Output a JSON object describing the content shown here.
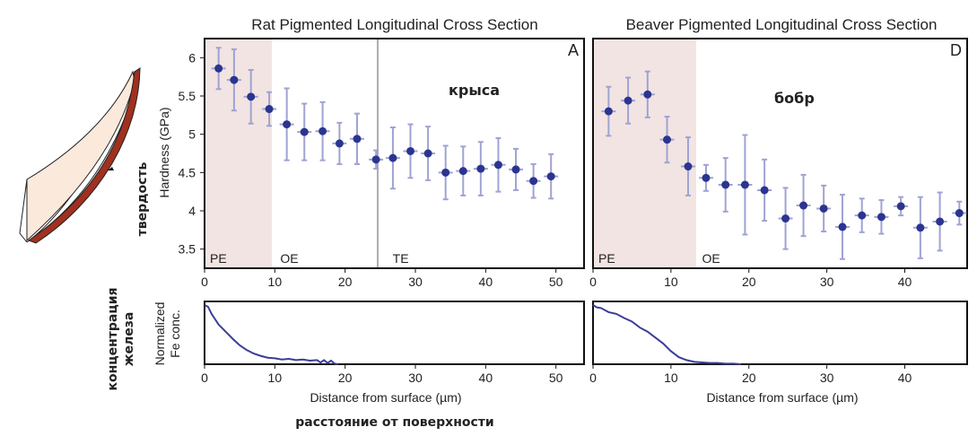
{
  "colors": {
    "points": "#2b3590",
    "errorbars": "#9fa3d3",
    "pe_zone": "#f2e4e2",
    "fe_line": "#3a3d96",
    "enamel_dark": "#a0301f"
  },
  "labels": {
    "y_ru_hardness": "твердость",
    "y_ru_iron_1": "концентрация",
    "y_ru_iron_2": "железа",
    "x_ru": "расстояние от поверхности"
  },
  "illustration": {
    "icon": "incisor-tooth-diagram-icon"
  },
  "chart_data": [
    {
      "type": "scatter",
      "title": "Rat Pigmented Longitudinal Cross Section",
      "panel_letter": "A",
      "annotation": "крыса",
      "ylabel": "Hardness (GPa)",
      "xlim": [
        0,
        54
      ],
      "ylim": [
        3.25,
        6.25
      ],
      "yticks": [
        "3.5",
        "4",
        "4.5",
        "5",
        "5.5",
        "6"
      ],
      "xticks": [
        "0",
        "10",
        "20",
        "30",
        "40",
        "50"
      ],
      "zones": [
        {
          "label": "PE",
          "x": 0
        },
        {
          "label": "OE",
          "x": 10
        },
        {
          "label": "TE",
          "x": 26
        }
      ],
      "pe_range": [
        0,
        10
      ],
      "te_line": 26,
      "x": [
        2,
        4.2,
        6.6,
        9.2,
        11.7,
        14.2,
        16.8,
        19.2,
        21.7,
        24.4,
        26.8,
        29.3,
        31.8,
        34.3,
        36.8,
        39.3,
        41.8,
        44.3,
        46.8,
        49.3
      ],
      "y": [
        5.86,
        5.71,
        5.49,
        5.33,
        5.13,
        5.03,
        5.04,
        4.88,
        4.94,
        4.67,
        4.69,
        4.78,
        4.75,
        4.5,
        4.52,
        4.55,
        4.6,
        4.54,
        4.39,
        4.45
      ],
      "err": [
        0.27,
        0.4,
        0.35,
        0.22,
        0.47,
        0.37,
        0.38,
        0.27,
        0.33,
        0.12,
        0.4,
        0.35,
        0.35,
        0.35,
        0.32,
        0.35,
        0.35,
        0.27,
        0.22,
        0.29
      ]
    },
    {
      "type": "scatter",
      "title": "Beaver Pigmented Longitudinal Cross Section",
      "panel_letter": "D",
      "annotation": "бобр",
      "ylabel": "",
      "xlim": [
        0,
        48
      ],
      "ylim": [
        3.25,
        6.25
      ],
      "xticks": [
        "0",
        "10",
        "20",
        "30",
        "40"
      ],
      "zones": [
        {
          "label": "PE",
          "x": 0
        },
        {
          "label": "OE",
          "x": 13.3
        }
      ],
      "pe_range": [
        0,
        13.3
      ],
      "x": [
        2,
        4.5,
        7,
        9.5,
        12.2,
        14.5,
        17,
        19.5,
        22,
        24.7,
        27,
        29.6,
        32,
        34.5,
        37,
        39.5,
        42,
        44.5,
        47
      ],
      "y": [
        5.3,
        5.44,
        5.52,
        4.93,
        4.58,
        4.43,
        4.34,
        4.34,
        4.27,
        3.9,
        4.07,
        4.03,
        3.79,
        3.94,
        3.92,
        4.06,
        3.78,
        3.86,
        3.97
      ],
      "err": [
        0.32,
        0.3,
        0.3,
        0.3,
        0.38,
        0.17,
        0.35,
        0.65,
        0.4,
        0.4,
        0.4,
        0.3,
        0.42,
        0.22,
        0.22,
        0.12,
        0.4,
        0.38,
        0.15
      ]
    },
    {
      "type": "line",
      "ylabel_1": "Normalized",
      "ylabel_2": "Fe conc.",
      "xlabel": "Distance from surface (µm)",
      "xlim": [
        0,
        54
      ],
      "ylim": [
        0,
        1
      ],
      "xticks": [
        "0",
        "10",
        "20",
        "30",
        "40",
        "50"
      ],
      "x": [
        0,
        0.5,
        1,
        2,
        3,
        4,
        5,
        6,
        7,
        8,
        9,
        10,
        11,
        12,
        13,
        14,
        15,
        16,
        16.5,
        17,
        17.5,
        18,
        18.5,
        19
      ],
      "y": [
        1.0,
        0.97,
        0.85,
        0.67,
        0.55,
        0.43,
        0.32,
        0.24,
        0.18,
        0.14,
        0.11,
        0.1,
        0.08,
        0.09,
        0.07,
        0.08,
        0.06,
        0.07,
        0.03,
        0.07,
        0.02,
        0.06,
        0.01,
        0.0
      ]
    },
    {
      "type": "line",
      "xlabel": "Distance from surface (µm)",
      "xlim": [
        0,
        48
      ],
      "ylim": [
        0,
        1
      ],
      "xticks": [
        "0",
        "10",
        "20",
        "30",
        "40"
      ],
      "x": [
        0,
        0.5,
        1,
        2,
        3,
        4,
        5,
        6,
        7,
        8,
        9,
        10,
        11,
        12,
        13,
        14,
        15,
        16,
        17,
        18,
        19
      ],
      "y": [
        1.0,
        0.96,
        0.95,
        0.88,
        0.85,
        0.78,
        0.72,
        0.62,
        0.55,
        0.45,
        0.35,
        0.22,
        0.12,
        0.07,
        0.04,
        0.03,
        0.02,
        0.02,
        0.01,
        0.01,
        0.0
      ]
    }
  ]
}
